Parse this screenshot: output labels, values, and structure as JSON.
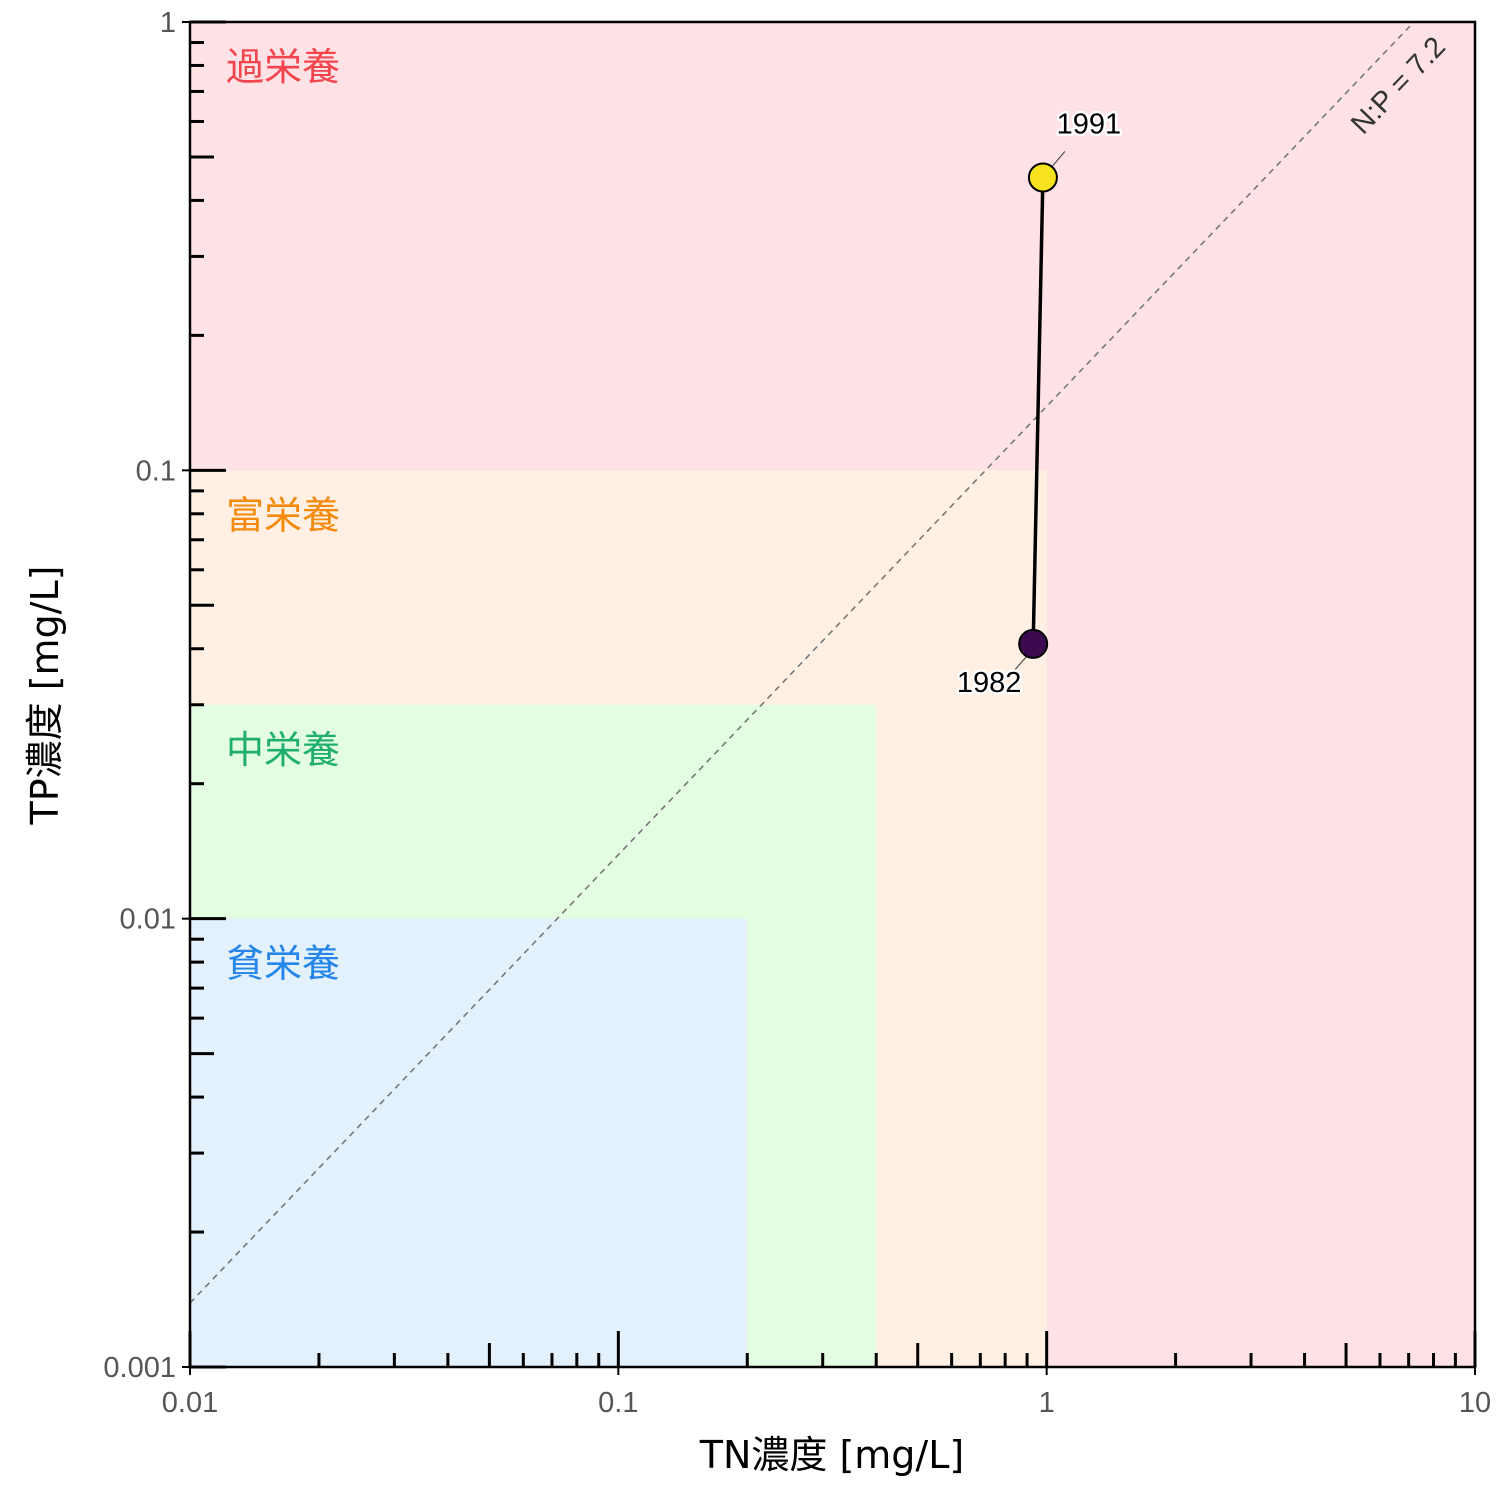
{
  "chart_data": {
    "type": "scatter",
    "title": "",
    "xlabel": "TN濃度 [mg/L]",
    "ylabel": "TP濃度 [mg/L]",
    "xscale": "log",
    "yscale": "log",
    "xlim": [
      0.01,
      10
    ],
    "ylim": [
      0.001,
      1
    ],
    "x_tick_labels": [
      "0.01",
      "0.1",
      "1",
      "10"
    ],
    "y_tick_labels": [
      "0.001",
      "0.01",
      "0.1",
      "1"
    ],
    "grid": false,
    "zones": [
      {
        "label": "過栄養",
        "tn_max": 10,
        "tp_max": 1,
        "fill": "#ffe2e5",
        "text_color": "#f2454e"
      },
      {
        "label": "富栄養",
        "tn_max": 1,
        "tp_max": 0.1,
        "fill": "#fff0e3",
        "text_color": "#f58a0c"
      },
      {
        "label": "中栄養",
        "tn_max": 0.4,
        "tp_max": 0.03,
        "fill": "#e2fde1",
        "text_color": "#1fae6f"
      },
      {
        "label": "貧栄養",
        "tn_max": 0.2,
        "tp_max": 0.01,
        "fill": "#e3f1fd",
        "text_color": "#2585e8"
      }
    ],
    "reference_line": {
      "label": "N:P = 7.2",
      "ratio": 7.2
    },
    "series": [
      {
        "points": [
          {
            "year": "1982",
            "tn": 0.93,
            "tp": 0.041,
            "color": "#3d0a50"
          },
          {
            "year": "1991",
            "tn": 0.98,
            "tp": 0.45,
            "color": "#f6e21d"
          }
        ],
        "line_color": "#000000"
      }
    ]
  }
}
